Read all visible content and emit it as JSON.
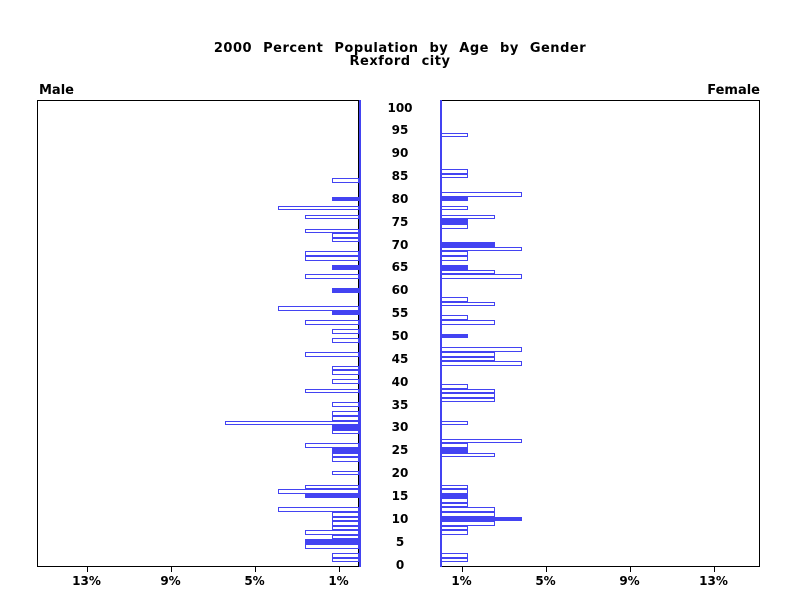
{
  "title": {
    "line1": "2000 Percent Population by Age by Gender",
    "line2": "Rexford city"
  },
  "side_labels": {
    "left": "Male",
    "right": "Female"
  },
  "colors": {
    "bar_outline": "#4343f2",
    "bar_fill": "#4343f2",
    "frame": "#000000",
    "text": "#000000",
    "background": "#ffffff"
  },
  "chart_data": {
    "type": "bar",
    "subtype": "population-pyramid",
    "title": "2000 Percent Population by Age by Gender",
    "subtitle": "Rexford city",
    "left_series_label": "Male",
    "right_series_label": "Female",
    "value_unit": "percent of gender population",
    "age_axis": {
      "min": 0,
      "max": 100,
      "tick_step": 5
    },
    "percent_axis": {
      "max": 15.3,
      "ticks": [
        1,
        5,
        9,
        13
      ],
      "male_tick_labels": [
        "13%",
        "9%",
        "5%",
        "1%"
      ],
      "female_tick_labels": [
        "1%",
        "5%",
        "9%",
        "13%"
      ]
    },
    "legend_note": "solid bars highlighted, others outlined",
    "male": [
      {
        "age": 84,
        "percent": 1.3,
        "filled": false
      },
      {
        "age": 80,
        "percent": 1.3,
        "filled": true
      },
      {
        "age": 78,
        "percent": 3.9,
        "filled": false
      },
      {
        "age": 76,
        "percent": 2.6,
        "filled": false
      },
      {
        "age": 73,
        "percent": 2.6,
        "filled": false
      },
      {
        "age": 72,
        "percent": 1.3,
        "filled": false
      },
      {
        "age": 71,
        "percent": 1.3,
        "filled": false
      },
      {
        "age": 68,
        "percent": 2.6,
        "filled": false
      },
      {
        "age": 67,
        "percent": 2.6,
        "filled": false
      },
      {
        "age": 65,
        "percent": 1.3,
        "filled": true
      },
      {
        "age": 63,
        "percent": 2.6,
        "filled": false
      },
      {
        "age": 60,
        "percent": 1.3,
        "filled": true
      },
      {
        "age": 56,
        "percent": 3.9,
        "filled": false
      },
      {
        "age": 55,
        "percent": 1.3,
        "filled": true
      },
      {
        "age": 53,
        "percent": 2.6,
        "filled": false
      },
      {
        "age": 51,
        "percent": 1.3,
        "filled": false
      },
      {
        "age": 49,
        "percent": 1.3,
        "filled": false
      },
      {
        "age": 46,
        "percent": 2.6,
        "filled": false
      },
      {
        "age": 43,
        "percent": 1.3,
        "filled": false
      },
      {
        "age": 42,
        "percent": 1.3,
        "filled": false
      },
      {
        "age": 40,
        "percent": 1.3,
        "filled": false
      },
      {
        "age": 38,
        "percent": 2.6,
        "filled": false
      },
      {
        "age": 35,
        "percent": 1.3,
        "filled": false
      },
      {
        "age": 33,
        "percent": 1.3,
        "filled": false
      },
      {
        "age": 32,
        "percent": 1.3,
        "filled": false
      },
      {
        "age": 31,
        "percent": 6.4,
        "filled": false
      },
      {
        "age": 30,
        "percent": 1.3,
        "filled": true
      },
      {
        "age": 29,
        "percent": 1.3,
        "filled": false
      },
      {
        "age": 26,
        "percent": 2.6,
        "filled": false
      },
      {
        "age": 25,
        "percent": 1.3,
        "filled": true
      },
      {
        "age": 24,
        "percent": 1.3,
        "filled": false
      },
      {
        "age": 23,
        "percent": 1.3,
        "filled": false
      },
      {
        "age": 20,
        "percent": 1.3,
        "filled": false
      },
      {
        "age": 17,
        "percent": 2.6,
        "filled": false
      },
      {
        "age": 16,
        "percent": 3.9,
        "filled": false
      },
      {
        "age": 15,
        "percent": 2.6,
        "filled": true
      },
      {
        "age": 12,
        "percent": 3.9,
        "filled": false
      },
      {
        "age": 11,
        "percent": 1.3,
        "filled": false
      },
      {
        "age": 10,
        "percent": 1.3,
        "filled": false
      },
      {
        "age": 9,
        "percent": 1.3,
        "filled": false
      },
      {
        "age": 8,
        "percent": 1.3,
        "filled": false
      },
      {
        "age": 7,
        "percent": 2.6,
        "filled": false
      },
      {
        "age": 6,
        "percent": 1.3,
        "filled": false
      },
      {
        "age": 5,
        "percent": 2.6,
        "filled": true
      },
      {
        "age": 4,
        "percent": 2.6,
        "filled": false
      },
      {
        "age": 2,
        "percent": 1.3,
        "filled": false
      },
      {
        "age": 1,
        "percent": 1.3,
        "filled": false
      }
    ],
    "female": [
      {
        "age": 94,
        "percent": 1.3,
        "filled": false
      },
      {
        "age": 86,
        "percent": 1.3,
        "filled": false
      },
      {
        "age": 85,
        "percent": 1.3,
        "filled": false
      },
      {
        "age": 81,
        "percent": 3.9,
        "filled": false
      },
      {
        "age": 80,
        "percent": 1.3,
        "filled": true
      },
      {
        "age": 78,
        "percent": 1.3,
        "filled": false
      },
      {
        "age": 76,
        "percent": 2.6,
        "filled": false
      },
      {
        "age": 75,
        "percent": 1.3,
        "filled": true
      },
      {
        "age": 74,
        "percent": 1.3,
        "filled": false
      },
      {
        "age": 70,
        "percent": 2.6,
        "filled": true
      },
      {
        "age": 69,
        "percent": 3.9,
        "filled": false
      },
      {
        "age": 68,
        "percent": 1.3,
        "filled": false
      },
      {
        "age": 67,
        "percent": 1.3,
        "filled": false
      },
      {
        "age": 65,
        "percent": 1.3,
        "filled": true
      },
      {
        "age": 64,
        "percent": 2.6,
        "filled": false
      },
      {
        "age": 63,
        "percent": 3.9,
        "filled": false
      },
      {
        "age": 58,
        "percent": 1.3,
        "filled": false
      },
      {
        "age": 57,
        "percent": 2.6,
        "filled": false
      },
      {
        "age": 54,
        "percent": 1.3,
        "filled": false
      },
      {
        "age": 53,
        "percent": 2.6,
        "filled": false
      },
      {
        "age": 50,
        "percent": 1.3,
        "filled": true
      },
      {
        "age": 47,
        "percent": 3.9,
        "filled": false
      },
      {
        "age": 46,
        "percent": 2.6,
        "filled": false
      },
      {
        "age": 45,
        "percent": 2.6,
        "filled": false
      },
      {
        "age": 44,
        "percent": 3.9,
        "filled": false
      },
      {
        "age": 39,
        "percent": 1.3,
        "filled": false
      },
      {
        "age": 38,
        "percent": 2.6,
        "filled": false
      },
      {
        "age": 37,
        "percent": 2.6,
        "filled": false
      },
      {
        "age": 36,
        "percent": 2.6,
        "filled": false
      },
      {
        "age": 31,
        "percent": 1.3,
        "filled": false
      },
      {
        "age": 27,
        "percent": 3.9,
        "filled": false
      },
      {
        "age": 26,
        "percent": 1.3,
        "filled": false
      },
      {
        "age": 25,
        "percent": 1.3,
        "filled": true
      },
      {
        "age": 24,
        "percent": 2.6,
        "filled": false
      },
      {
        "age": 17,
        "percent": 1.3,
        "filled": false
      },
      {
        "age": 16,
        "percent": 1.3,
        "filled": false
      },
      {
        "age": 15,
        "percent": 1.3,
        "filled": true
      },
      {
        "age": 14,
        "percent": 1.3,
        "filled": false
      },
      {
        "age": 13,
        "percent": 1.3,
        "filled": false
      },
      {
        "age": 12,
        "percent": 2.6,
        "filled": false
      },
      {
        "age": 11,
        "percent": 2.6,
        "filled": false
      },
      {
        "age": 10,
        "percent": 3.9,
        "filled": true
      },
      {
        "age": 9,
        "percent": 2.6,
        "filled": false
      },
      {
        "age": 8,
        "percent": 1.3,
        "filled": false
      },
      {
        "age": 7,
        "percent": 1.3,
        "filled": false
      },
      {
        "age": 2,
        "percent": 1.3,
        "filled": false
      },
      {
        "age": 1,
        "percent": 1.3,
        "filled": false
      }
    ]
  }
}
